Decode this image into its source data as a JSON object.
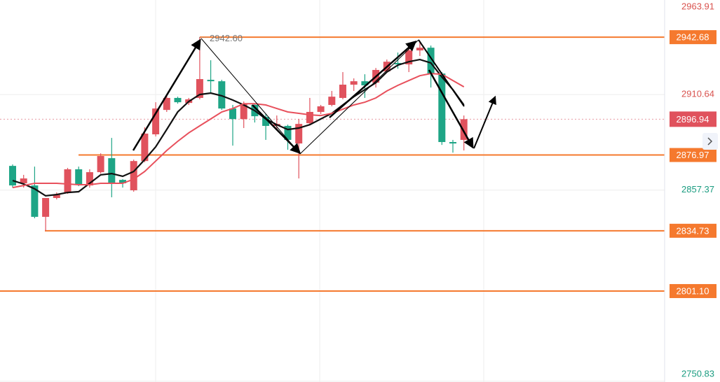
{
  "chart_data": {
    "type": "candlestick",
    "open": [
      2870.9,
      2861.2,
      2860.0,
      2842.5,
      2853.0,
      2856.1,
      2869.0,
      2860.0,
      2867.4,
      2875.2,
      2863.1,
      2857.3,
      2873.6,
      2888.5,
      2902.1,
      2908.8,
      2906.0,
      2908.8,
      2918.9,
      2918.1,
      2902.9,
      2897.0,
      2904.9,
      2898.2,
      2893.2,
      2893.2,
      2883.4,
      2894.7,
      2901.0,
      2904.9,
      2908.8,
      2916.2,
      2918.1,
      2917.3,
      2923.6,
      2928.3,
      2927.5,
      2935.3,
      2936.8,
      2922.4,
      2884.2,
      2885.4
    ],
    "high": [
      2871.7,
      2865.9,
      2870.5,
      2853.0,
      2856.1,
      2869.8,
      2870.5,
      2869.0,
      2877.9,
      2886.5,
      2863.5,
      2874.4,
      2892.4,
      2906.4,
      2909.9,
      2909.5,
      2908.8,
      2942.6,
      2929.8,
      2918.9,
      2904.9,
      2906.8,
      2905.6,
      2899.8,
      2899.0,
      2893.9,
      2897.1,
      2908.8,
      2904.9,
      2912.7,
      2923.2,
      2919.7,
      2922.0,
      2925.5,
      2930.2,
      2934.1,
      2936.8,
      2940.7,
      2938.0,
      2923.2,
      2885.4,
      2899.0
    ],
    "low": [
      2858.8,
      2858.8,
      2841.7,
      2834.7,
      2852.2,
      2855.3,
      2859.6,
      2858.8,
      2866.6,
      2853.4,
      2858.8,
      2856.5,
      2872.9,
      2887.3,
      2901.0,
      2905.6,
      2904.9,
      2908.0,
      2911.1,
      2902.1,
      2882.2,
      2892.0,
      2895.1,
      2885.4,
      2891.2,
      2879.9,
      2863.9,
      2893.9,
      2899.8,
      2904.1,
      2908.0,
      2912.7,
      2908.8,
      2914.6,
      2922.8,
      2925.1,
      2923.2,
      2932.2,
      2914.6,
      2882.6,
      2878.3,
      2879.5
    ],
    "close": [
      2860.0,
      2863.9,
      2842.5,
      2853.0,
      2854.9,
      2869.0,
      2860.4,
      2867.4,
      2876.4,
      2861.2,
      2861.2,
      2873.6,
      2888.9,
      2902.9,
      2908.8,
      2906.4,
      2908.0,
      2919.3,
      2918.1,
      2902.9,
      2897.0,
      2905.6,
      2898.6,
      2893.2,
      2894.3,
      2885.4,
      2894.3,
      2901.0,
      2904.1,
      2909.5,
      2916.2,
      2918.1,
      2915.8,
      2924.4,
      2929.0,
      2927.5,
      2935.3,
      2936.8,
      2922.4,
      2884.2,
      2883.4,
      2896.94
    ],
    "up_color": "#e0525d",
    "down_color": "#1ea586",
    "series": [
      {
        "color": "#111111",
        "values": [
          2862.7,
          2860.8,
          2858.1,
          2854.2,
          2854.9,
          2856.1,
          2856.5,
          2861.2,
          2865.9,
          2866.6,
          2865.1,
          2867.8,
          2874.4,
          2881.5,
          2891.2,
          2901.0,
          2906.8,
          2910.7,
          2911.5,
          2910.0,
          2907.6,
          2904.9,
          2901.7,
          2897.1,
          2893.9,
          2891.2,
          2892.0,
          2893.9,
          2897.1,
          2900.2,
          2904.9,
          2909.5,
          2913.4,
          2917.3,
          2923.2,
          2927.1,
          2929.0,
          2930.2,
          2928.3,
          2920.5,
          2913.4,
          2904.9
        ]
      },
      {
        "color": "#e8505c",
        "values": [
          2858.8,
          2860.0,
          2861.2,
          2861.2,
          2861.2,
          2860.8,
          2860.4,
          2860.4,
          2861.2,
          2861.2,
          2861.2,
          2863.5,
          2867.8,
          2873.6,
          2879.5,
          2884.6,
          2889.3,
          2893.2,
          2897.1,
          2901.0,
          2902.9,
          2905.6,
          2905.6,
          2904.9,
          2902.9,
          2901.0,
          2900.2,
          2899.4,
          2899.0,
          2900.2,
          2902.5,
          2904.9,
          2906.4,
          2908.8,
          2912.7,
          2915.8,
          2918.5,
          2921.2,
          2922.4,
          2922.0,
          2918.5,
          2915.0
        ]
      }
    ],
    "ylim": [
      2750.4,
      2963.4
    ],
    "yticks": [
      2963.91,
      2910.64,
      2857.37,
      2750.83
    ],
    "grid": true,
    "levels": [
      2942.68,
      2876.97,
      2834.73,
      {
        "value": 2801.1,
        "label": "2801.10"
      }
    ],
    "level_color": "#f5792e",
    "last_price": 2896.94,
    "high_marker": {
      "value": 2942.6,
      "label": "2942.60"
    }
  }
}
